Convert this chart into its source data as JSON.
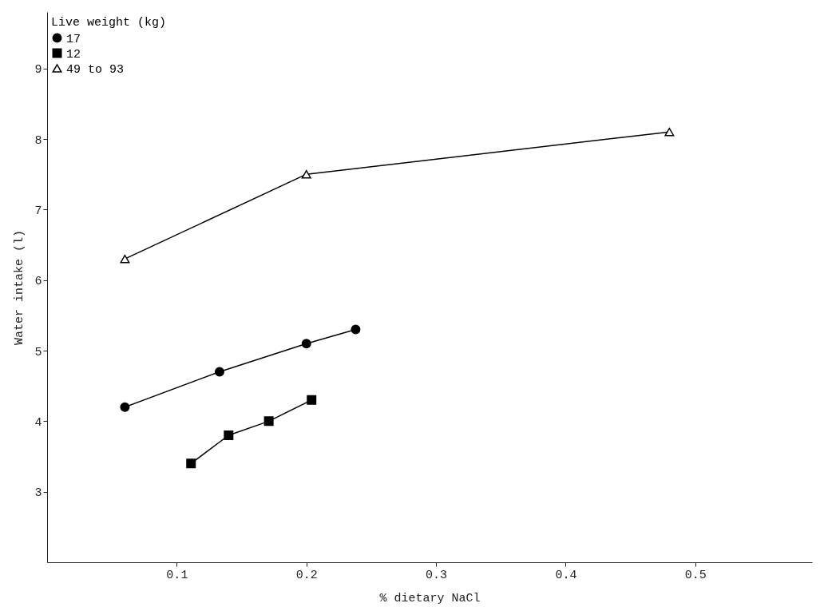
{
  "chart_data": {
    "type": "line",
    "xlabel": "% dietary NaCl",
    "ylabel": "Water intake (l)",
    "legend_title": "Live weight (kg)",
    "xlim": [
      0,
      0.59
    ],
    "ylim": [
      2,
      9.8
    ],
    "xticks": [
      0.1,
      0.2,
      0.3,
      0.4,
      0.5
    ],
    "yticks": [
      3,
      4,
      5,
      6,
      7,
      8,
      9
    ],
    "grid": false,
    "legend": "top left",
    "line_style": "solid",
    "series": [
      {
        "name": "17",
        "color": "#000000",
        "marker": "circle",
        "x": [
          0.06,
          0.133,
          0.2,
          0.238
        ],
        "values": [
          4.2,
          4.7,
          5.1,
          5.3
        ]
      },
      {
        "name": "12",
        "color": "#000000",
        "marker": "square",
        "x": [
          0.111,
          0.14,
          0.171,
          0.204
        ],
        "values": [
          3.4,
          3.8,
          4.0,
          4.3
        ]
      },
      {
        "name": "49 to 93",
        "color": "#000000",
        "marker": "triangle",
        "x": [
          0.06,
          0.2,
          0.48
        ],
        "values": [
          6.3,
          7.5,
          8.1
        ]
      }
    ]
  }
}
